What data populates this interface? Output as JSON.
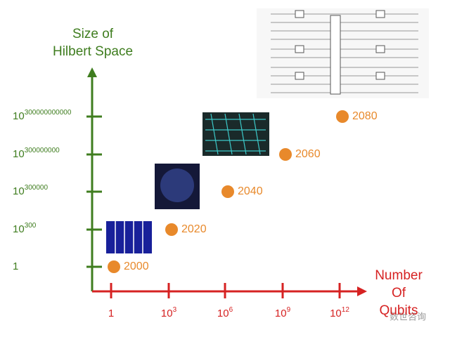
{
  "chart_data": {
    "type": "scatter",
    "y_title": [
      "Size of",
      "Hilbert Space"
    ],
    "x_title": [
      "Number",
      "Of",
      "Qubits"
    ],
    "x_categories": [
      {
        "base": "1"
      },
      {
        "base": "10",
        "exp": "3"
      },
      {
        "base": "10",
        "exp": "6"
      },
      {
        "base": "10",
        "exp": "9"
      },
      {
        "base": "10",
        "exp": "12"
      }
    ],
    "y_categories": [
      {
        "base": "1"
      },
      {
        "base": "10",
        "exp": "300"
      },
      {
        "base": "10",
        "exp": "300000"
      },
      {
        "base": "10",
        "exp": "300000000"
      },
      {
        "base": "10",
        "exp": "300000000000"
      }
    ],
    "point_labels": [
      "2000",
      "2020",
      "2040",
      "2060",
      "2080"
    ],
    "point_color": "#e8892b",
    "y_axis_color": "#3f7d1f",
    "x_axis_color": "#d62222"
  },
  "watermark": "数世咨询"
}
